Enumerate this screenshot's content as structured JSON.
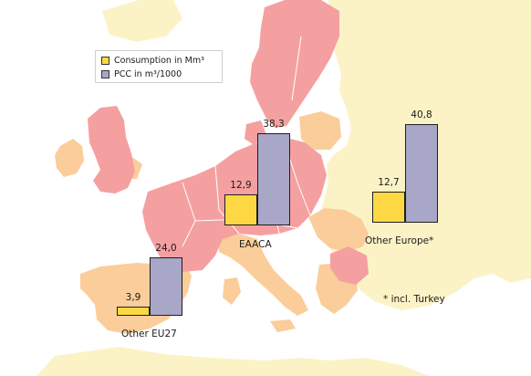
{
  "legend": {
    "consumption": "Consumption in Mm³",
    "pcc": "PCC in m³/1000"
  },
  "colors": {
    "consumption": "#fdd843",
    "pcc": "#a9a7c8",
    "sea": "#ffffff",
    "eaaca_region": "#f5a0a0",
    "other_eu27_region": "#fbcd9a",
    "other_europe_region": "#fbf3c6",
    "outside_region": "#fbf3c6"
  },
  "chart_data": {
    "type": "bar",
    "categories": [
      "Other EU27",
      "EAACA",
      "Other Europe*"
    ],
    "series": [
      {
        "name": "Consumption in Mm³",
        "values": [
          3.9,
          12.9,
          12.7
        ]
      },
      {
        "name": "PCC in m³/1000",
        "values": [
          24.0,
          38.3,
          40.8
        ]
      }
    ],
    "data_labels": {
      "consumption": [
        "3,9",
        "12,9",
        "12,7"
      ],
      "pcc": [
        "24,0",
        "38,3",
        "40,8"
      ]
    },
    "footnote": "* incl. Turkey"
  }
}
